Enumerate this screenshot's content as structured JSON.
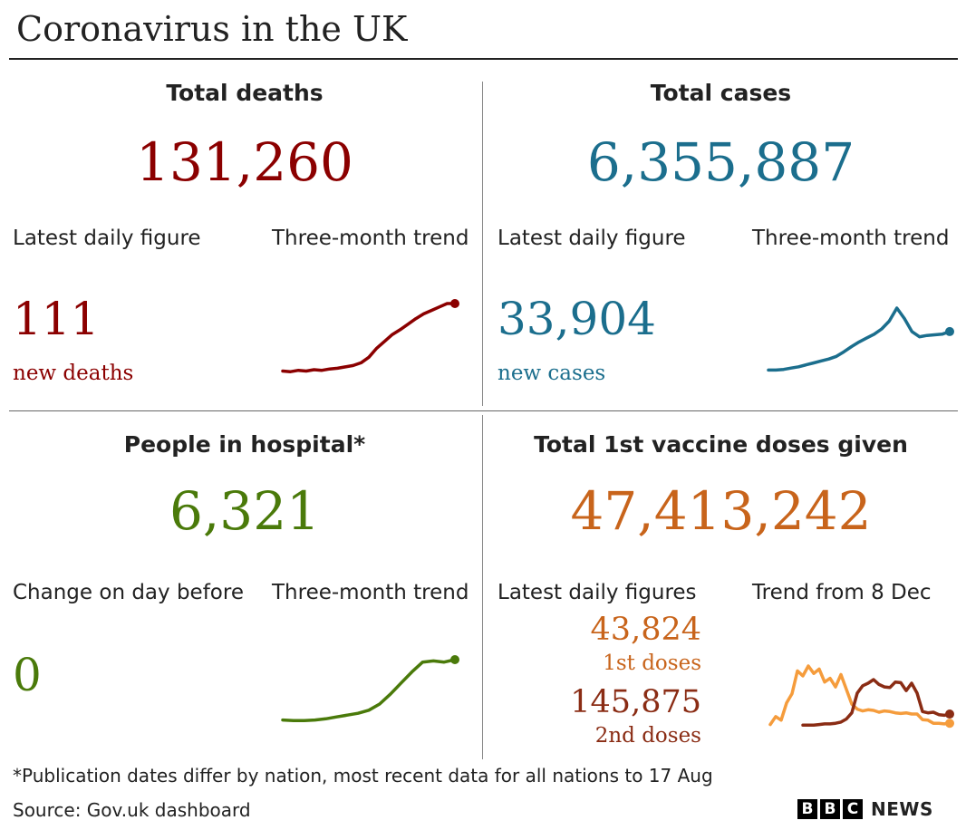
{
  "title": "Coronavirus in the UK",
  "colors": {
    "deaths": "#8b0000",
    "cases": "#1b6e8d",
    "hospital": "#4a7a0a",
    "vaccine": "#c8641b",
    "first_doses_line": "#f59c3c",
    "second_doses": "#8a2c14"
  },
  "panels": {
    "deaths": {
      "heading": "Total deaths",
      "total": "131,260",
      "latest_label": "Latest daily figure",
      "trend_label": "Three-month trend",
      "daily_value": "111",
      "daily_caption": "new deaths"
    },
    "cases": {
      "heading": "Total cases",
      "total": "6,355,887",
      "latest_label": "Latest daily figure",
      "trend_label": "Three-month trend",
      "daily_value": "33,904",
      "daily_caption": "new cases"
    },
    "hospital": {
      "heading": "People in hospital*",
      "total": "6,321",
      "latest_label": "Change on day before",
      "trend_label": "Three-month trend",
      "daily_value": "0"
    },
    "vaccine": {
      "heading": "Total 1st vaccine doses given",
      "total": "47,413,242",
      "latest_label": "Latest daily figures",
      "trend_label": "Trend from 8 Dec",
      "first_value": "43,824",
      "first_caption": "1st doses",
      "second_value": "145,875",
      "second_caption": "2nd doses"
    }
  },
  "footnote": "*Publication dates differ by nation, most recent data for all nations to 17 Aug",
  "source": "Source: Gov.uk dashboard",
  "logo": {
    "letters": [
      "B",
      "B",
      "C"
    ],
    "word": "NEWS"
  },
  "chart_data": [
    {
      "type": "line",
      "series": [
        {
          "values": [
            2,
            1,
            3,
            2,
            4,
            3,
            5,
            6,
            8,
            10,
            14,
            22,
            35,
            45,
            55,
            62,
            70,
            78,
            85,
            90,
            95,
            100,
            100
          ]
        }
      ]
    },
    {
      "type": "line",
      "series": [
        {
          "values": [
            5,
            5,
            6,
            8,
            10,
            13,
            16,
            19,
            22,
            26,
            33,
            41,
            48,
            54,
            60,
            68,
            80,
            100,
            84,
            64,
            56,
            58,
            59,
            60,
            64
          ]
        }
      ]
    },
    {
      "type": "line",
      "series": [
        {
          "values": [
            2,
            1,
            1,
            2,
            4,
            7,
            10,
            13,
            18,
            28,
            44,
            62,
            80,
            96,
            98,
            96,
            100
          ]
        }
      ]
    },
    {
      "type": "line",
      "series": [
        {
          "name": "1st doses",
          "values": [
            5,
            18,
            12,
            40,
            55,
            92,
            84,
            100,
            88,
            95,
            74,
            80,
            66,
            86,
            62,
            38,
            30,
            27,
            29,
            28,
            25,
            27,
            26,
            24,
            23,
            24,
            22,
            22,
            13,
            12,
            7,
            7,
            6,
            7
          ]
        },
        {
          "name": "2nd doses",
          "values": [
            null,
            null,
            null,
            null,
            null,
            null,
            4,
            4,
            4,
            5,
            6,
            6,
            7,
            9,
            14,
            24,
            56,
            68,
            72,
            78,
            70,
            66,
            65,
            74,
            73,
            60,
            72,
            56,
            26,
            24,
            25,
            21,
            20,
            22
          ]
        }
      ]
    }
  ]
}
